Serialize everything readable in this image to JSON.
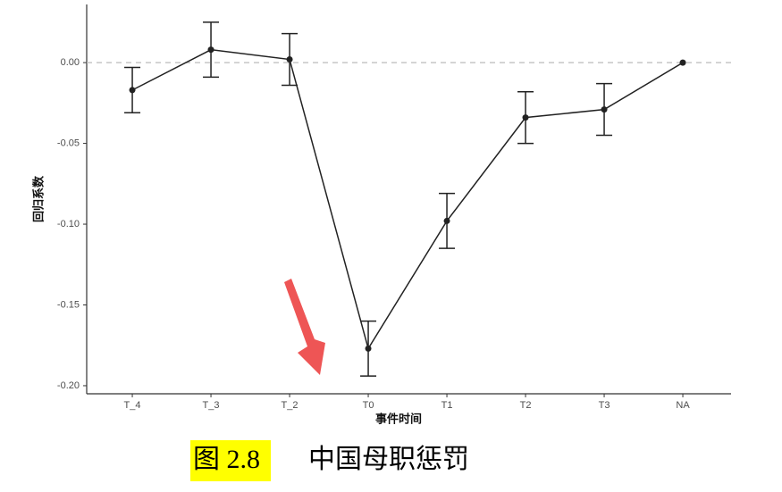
{
  "chart_data": {
    "type": "errorbar-line",
    "x_label": "事件时间",
    "y_label": "回归系数",
    "categories": [
      "T_4",
      "T_3",
      "T_2",
      "T0",
      "T1",
      "T2",
      "T3",
      "NA"
    ],
    "values": [
      -0.017,
      0.008,
      0.002,
      -0.177,
      -0.098,
      -0.034,
      -0.029,
      0
    ],
    "errors": [
      0.014,
      0.017,
      0.016,
      0.017,
      0.017,
      0.016,
      0.016,
      null
    ],
    "color": "#222222",
    "reference_line": 0,
    "ylim": [
      -0.205,
      0.036
    ],
    "yticks": [
      {
        "value": 0,
        "label": "0.00"
      },
      {
        "value": -0.05,
        "label": "-0.05"
      },
      {
        "value": -0.1,
        "label": "-0.10"
      },
      {
        "value": -0.15,
        "label": "-0.15"
      },
      {
        "value": -0.2,
        "label": "-0.20"
      }
    ]
  },
  "caption": {
    "label": "图 2.8",
    "text": "中国母职惩罚"
  }
}
